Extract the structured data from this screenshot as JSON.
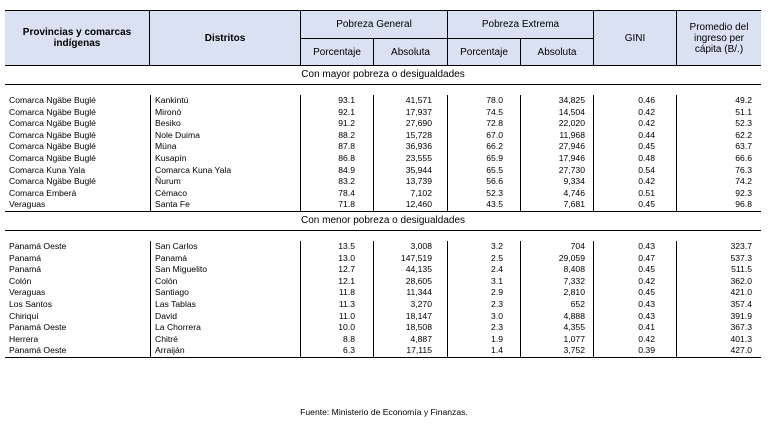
{
  "header": {
    "provincias": "Provincias y comarcas indígenas",
    "distritos": "Distritos",
    "pobreza_general": "Pobreza General",
    "pobreza_extrema": "Pobreza Extrema",
    "porcentaje": "Porcentaje",
    "absoluta": "Absoluta",
    "gini": "GINI",
    "ingreso": "Promedio del ingreso per cápita (B/.)"
  },
  "section_top": "Con mayor pobreza o desigualdades",
  "rows_top": [
    [
      "Comarca Ngäbe Buglé",
      "Kankintú",
      "93.1",
      "41,571",
      "78.0",
      "34,825",
      "0.46",
      "49.2"
    ],
    [
      "Comarca Ngäbe Buglé",
      "Mironó",
      "92.1",
      "17,937",
      "74.5",
      "14,504",
      "0.42",
      "51.1"
    ],
    [
      "Comarca Ngäbe Buglé",
      "Besiko",
      "91.2",
      "27,690",
      "72.8",
      "22,020",
      "0.42",
      "52.3"
    ],
    [
      "Comarca Ngäbe Buglé",
      "Nole Duima",
      "88.2",
      "15,728",
      "67.0",
      "11,968",
      "0.44",
      "62.2"
    ],
    [
      "Comarca Ngäbe Buglé",
      "Müna",
      "87.8",
      "36,936",
      "66.2",
      "27,946",
      "0.45",
      "63.7"
    ],
    [
      "Comarca Ngäbe Buglé",
      "Kusapín",
      "86.8",
      "23,555",
      "65.9",
      "17,946",
      "0.48",
      "66.6"
    ],
    [
      "Comarca Kuna Yala",
      "Comarca Kuna Yala",
      "84.9",
      "35,944",
      "65.5",
      "27,730",
      "0.54",
      "76.3"
    ],
    [
      "Comarca Ngäbe Buglé",
      "Ñurum",
      "83.2",
      "13,739",
      "56.6",
      "9,334",
      "0.42",
      "74.2"
    ],
    [
      "Comarca Emberá",
      "Cémaco",
      "78.4",
      "7,102",
      "52.3",
      "4,746",
      "0.51",
      "92.3"
    ],
    [
      "Veraguas",
      "Santa Fe",
      "71.8",
      "12,460",
      "43.5",
      "7,681",
      "0.45",
      "96.8"
    ]
  ],
  "section_bottom": "Con menor pobreza o desigualdades",
  "rows_bottom": [
    [
      "Panamá Oeste",
      "San Carlos",
      "13.5",
      "3,008",
      "3.2",
      "704",
      "0.43",
      "323.7"
    ],
    [
      "Panamá",
      "Panamá",
      "13.0",
      "147,519",
      "2.5",
      "29,059",
      "0.47",
      "537.3"
    ],
    [
      "Panamá",
      "San Miguelito",
      "12.7",
      "44,135",
      "2.4",
      "8,408",
      "0.45",
      "511.5"
    ],
    [
      "Colón",
      "Colón",
      "12.1",
      "28,605",
      "3.1",
      "7,332",
      "0.42",
      "362.0"
    ],
    [
      "Veraguas",
      "Santiago",
      "11.8",
      "11,344",
      "2.9",
      "2,810",
      "0.45",
      "421.0"
    ],
    [
      "Los Santos",
      "Las Tablas",
      "11.3",
      "3,270",
      "2.3",
      "652",
      "0.43",
      "357.4"
    ],
    [
      "Chiriquí",
      "David",
      "11.0",
      "18,147",
      "3.0",
      "4,888",
      "0.43",
      "391.9"
    ],
    [
      "Panamá Oeste",
      "La Chorrera",
      "10.0",
      "18,508",
      "2.3",
      "4,355",
      "0.41",
      "367.3"
    ],
    [
      "Herrera",
      "Chitré",
      "8.8",
      "4,887",
      "1.9",
      "1,077",
      "0.42",
      "401.3"
    ],
    [
      "Panamá Oeste",
      "Arraiján",
      "6.3",
      "17,115",
      "1.4",
      "3,752",
      "0.39",
      "427.0"
    ]
  ],
  "source": "Fuente: Ministerio de Economía y Finanzas."
}
